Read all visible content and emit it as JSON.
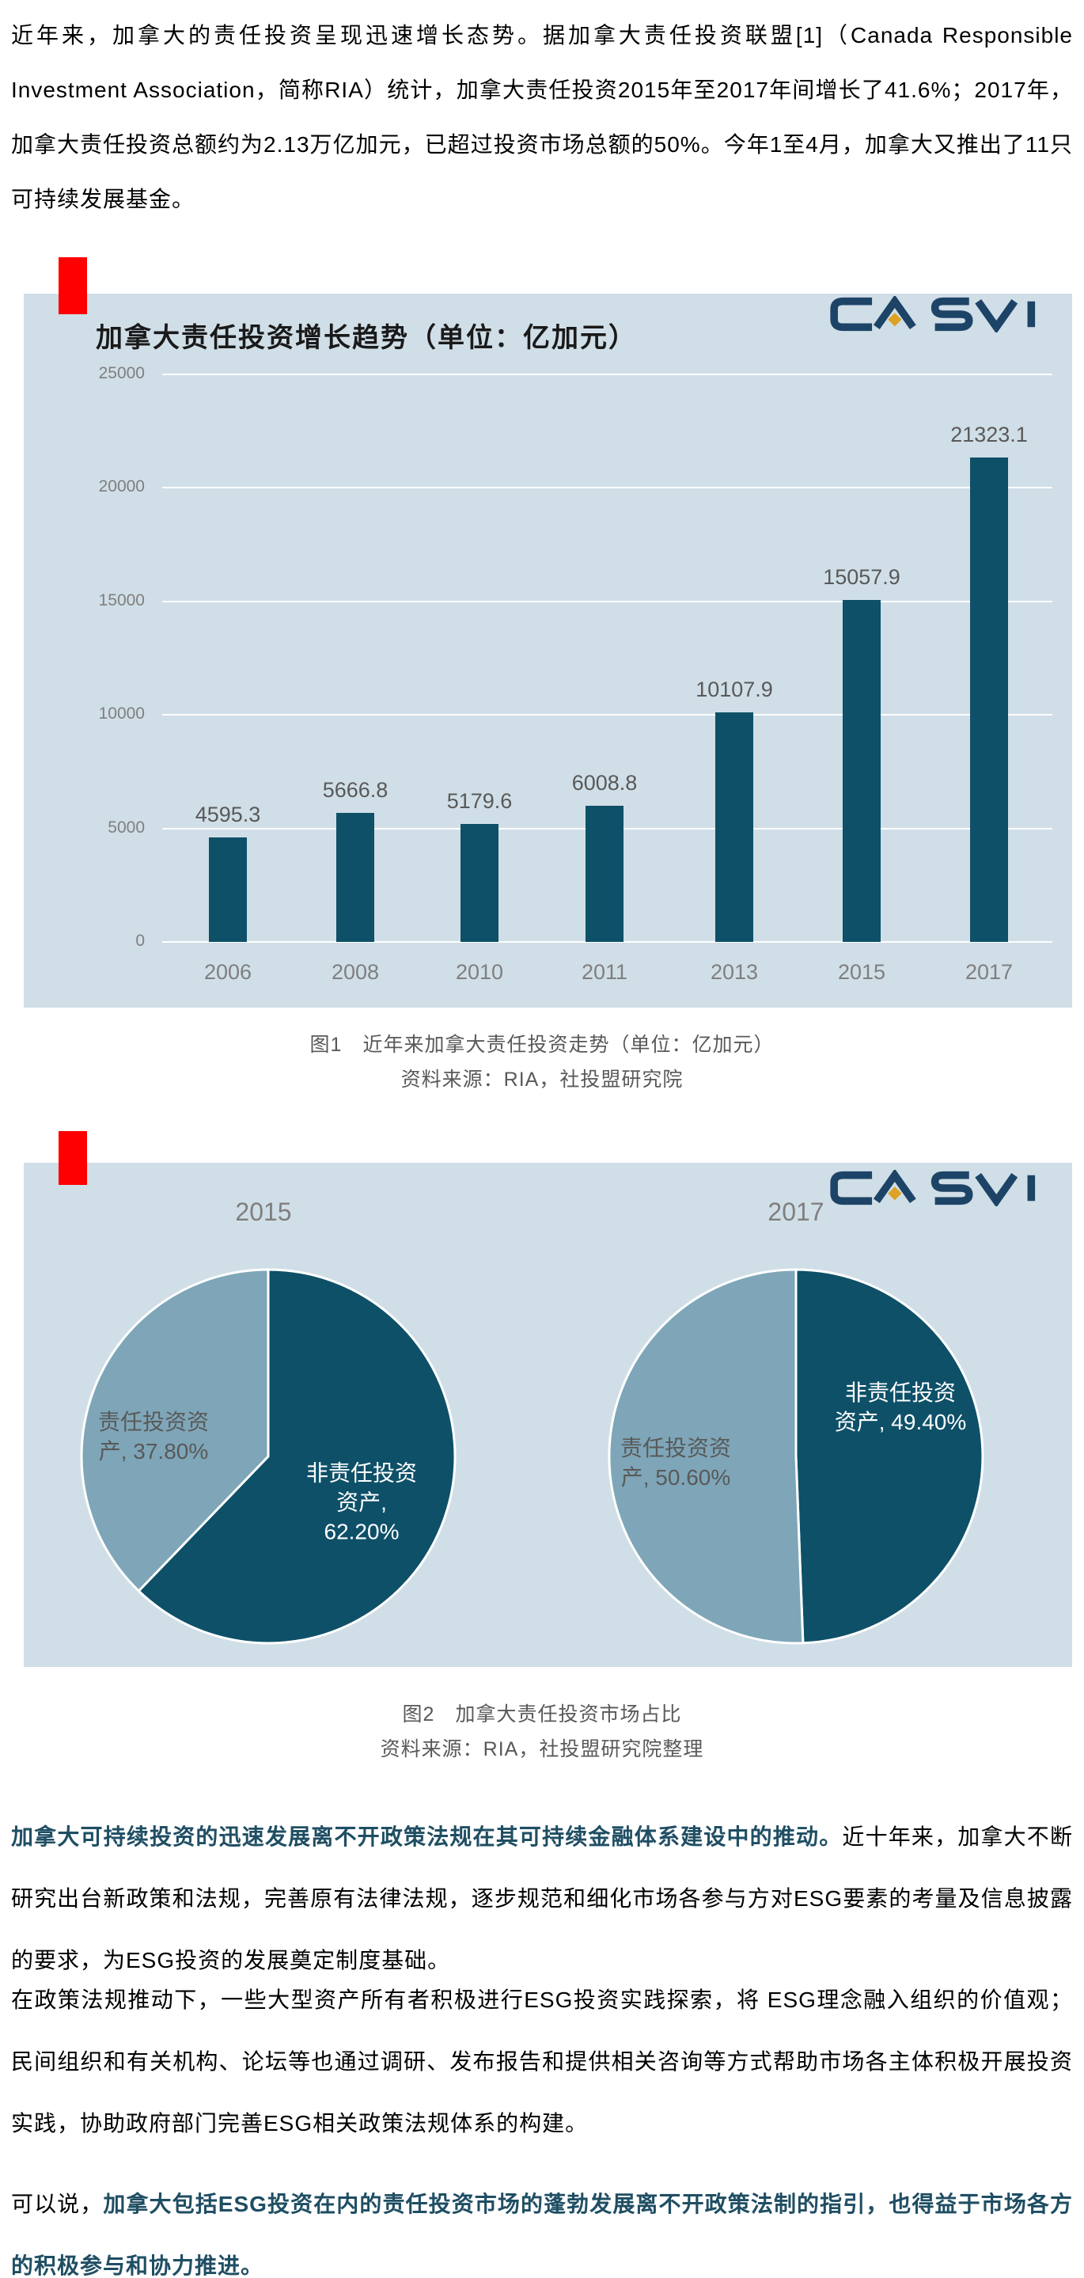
{
  "colors": {
    "page_bg": "#FFFFFF",
    "chart_bg": "#D0DEE7",
    "bar": "#0E5068",
    "pie_dark": "#0E5068",
    "pie_light": "#7EA6B8",
    "pie_stroke": "#FFFFFF",
    "accent_red": "#FF0000",
    "logo_navy": "#1D4467",
    "logo_gold": "#DDA225",
    "emphasis_text": "#1F4E63",
    "axis_gray": "#7F7F7F",
    "value_gray": "#595959",
    "grid": "#FFFFFF"
  },
  "logo": {
    "text": "CASVI"
  },
  "paragraphs": {
    "intro_segments": [
      {
        "bold": false,
        "text": "近年来，加拿大的责任投资呈现迅速增长态势。据加拿大责任投资联盟[1]（Canada Responsible Investment Association，简称RIA）统计，加拿大责任投资2015年至2017年间增长了41.6%；2017年，加拿大责任投资总额约为2.13万亿加元，已超过投资市场总额的50%。今年1至4月，加拿大又推出了11只可持续发展基金。"
      }
    ],
    "p2_segments": [
      {
        "bold": true,
        "text": "加拿大可持续投资的迅速发展离不开政策法规在其可持续金融体系建设中的推动。"
      },
      {
        "bold": false,
        "text": "近十年来，加拿大不断研究出台新政策和法规，完善原有法律法规，逐步规范和细化市场各参与方对ESG要素的考量及信息披露的要求，为ESG投资的发展奠定制度基础。"
      }
    ],
    "p3_segments": [
      {
        "bold": false,
        "text": "在政策法规推动下，一些大型资产所有者积极进行ESG投资实践探索，将 ESG理念融入组织的价值观；民间组织和有关机构、论坛等也通过调研、发布报告和提供相关咨询等方式帮助市场各主体积极开展投资实践，协助政府部门完善ESG相关政策法规体系的构建。"
      }
    ],
    "p4_segments": [
      {
        "bold": false,
        "text": "可以说，"
      },
      {
        "bold": true,
        "text": "加拿大包括ESG投资在内的责任投资市场的蓬勃发展离不开政策法制的指引，也得益于市场各方的积极参与和协力推进。"
      }
    ]
  },
  "figure1": {
    "title": "加拿大责任投资增长趋势（单位：亿加元）",
    "yticks": [
      25000,
      20000,
      15000,
      10000,
      5000,
      0
    ],
    "caption": "图1　近年来加拿大责任投资走势（单位：亿加元）",
    "source": "资料来源：RIA，社投盟研究院"
  },
  "figure2": {
    "pies": [
      {
        "title": "2015",
        "slices": [
          {
            "name": "非责任投资资产",
            "value": 62.2,
            "tone": "dark",
            "label_lines": [
              "非责任投资",
              "资产,",
              "62.20%"
            ]
          },
          {
            "name": "责任投资资产",
            "value": 37.8,
            "tone": "light",
            "label_lines": [
              "责任投资资",
              "产, 37.80%"
            ]
          }
        ]
      },
      {
        "title": "2017",
        "slices": [
          {
            "name": "非责任投资资产",
            "value": 49.4,
            "tone": "dark",
            "label_lines": [
              "非责任投资",
              "资产, 49.40%"
            ]
          },
          {
            "name": "责任投资资产",
            "value": 50.6,
            "tone": "light",
            "label_lines": [
              "责任投资资",
              "产, 50.60%"
            ]
          }
        ]
      }
    ],
    "caption": "图2　加拿大责任投资市场占比",
    "source": "资料来源：RIA，社投盟研究院整理"
  },
  "chart_data": [
    {
      "type": "bar",
      "title": "加拿大责任投资增长趋势（单位：亿加元）",
      "categories": [
        "2006",
        "2008",
        "2010",
        "2011",
        "2013",
        "2015",
        "2017"
      ],
      "values": [
        4595.3,
        5666.8,
        5179.6,
        6008.8,
        10107.9,
        15057.9,
        21323.1
      ],
      "xlabel": "",
      "ylabel": "",
      "ylim": [
        0,
        25000
      ],
      "yticks": [
        0,
        5000,
        10000,
        15000,
        20000,
        25000
      ],
      "grid": true,
      "legend": null,
      "bar_color": "#0E5068",
      "unit": "亿加元"
    },
    {
      "type": "pie",
      "title": "2015",
      "labels": [
        "非责任投资资产",
        "责任投资资产"
      ],
      "values": [
        62.2,
        37.8
      ],
      "colors": [
        "#0E5068",
        "#7EA6B8"
      ],
      "unit": "%",
      "start_angle": "top",
      "direction": "clockwise"
    },
    {
      "type": "pie",
      "title": "2017",
      "labels": [
        "非责任投资资产",
        "责任投资资产"
      ],
      "values": [
        49.4,
        50.6
      ],
      "colors": [
        "#0E5068",
        "#7EA6B8"
      ],
      "unit": "%",
      "start_angle": "top",
      "direction": "clockwise"
    }
  ]
}
